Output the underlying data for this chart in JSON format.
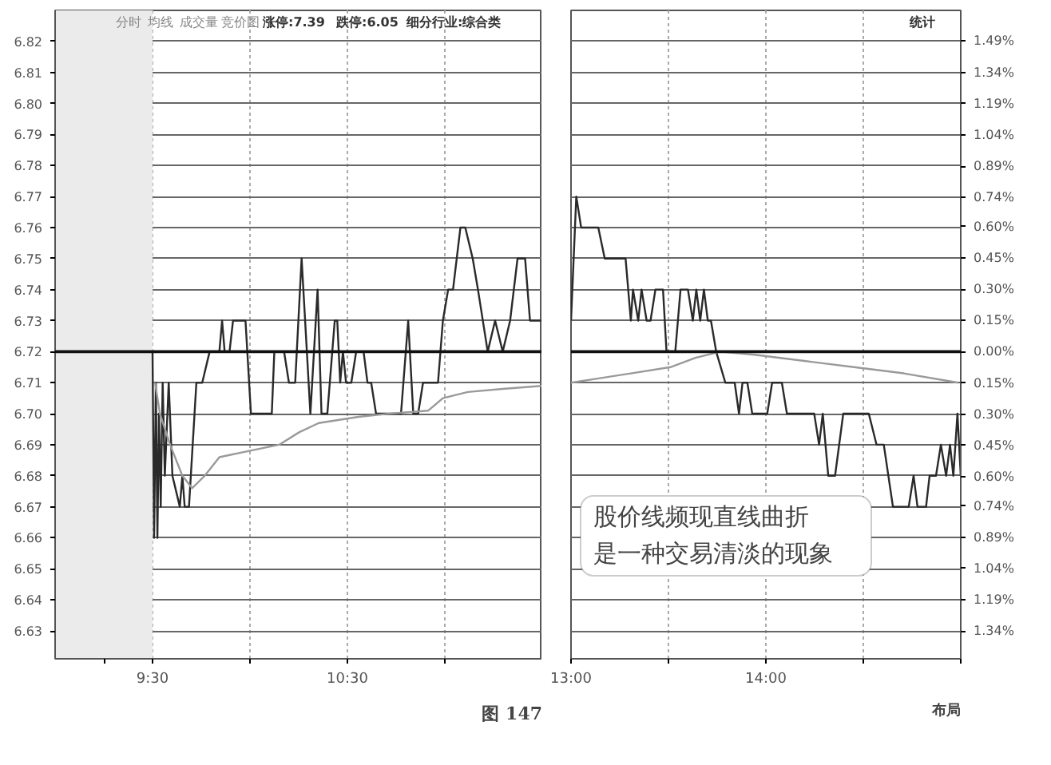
{
  "chart_data": [
    {
      "type": "line",
      "annotations": [
        "分时",
        "均线",
        "成交量",
        "竞价图",
        "涨停:7.39",
        "跌停:6.05",
        "细分行业:综合类",
        "图 147"
      ],
      "xlim": [
        9.0,
        11.5
      ],
      "xticks": [
        {
          "value": 9.25,
          "label": null
        },
        {
          "value": 9.5,
          "label": "9:30"
        },
        {
          "value": 10.0,
          "label": null
        },
        {
          "value": 10.5,
          "label": "10:30"
        },
        {
          "value": 11.0,
          "label": null
        }
      ],
      "ylim": [
        6.621,
        6.83
      ],
      "yticks": [
        6.63,
        6.64,
        6.65,
        6.66,
        6.67,
        6.68,
        6.69,
        {
          "value": 6.7,
          "label": "6.70"
        },
        6.71,
        6.72,
        6.73,
        6.74,
        6.75,
        6.76,
        6.77,
        6.78,
        6.79,
        {
          "value": 6.8,
          "label": "6.80"
        },
        6.81,
        6.82
      ],
      "grid": true,
      "line_style": "solid",
      "ref_lines": [
        {
          "axis": "y",
          "value": 6.72,
          "label": null,
          "color": "#111111"
        }
      ],
      "bands": [
        {
          "axis": "x",
          "from": 9.0,
          "to": 9.5,
          "label": null,
          "color": "#ebebeb"
        }
      ],
      "series": [
        {
          "color": "#2a2a2a",
          "x": [
            9.5,
            9.508,
            9.517,
            9.525,
            9.533,
            9.542,
            9.552,
            9.563,
            9.583,
            9.602,
            9.64,
            9.653,
            9.665,
            9.687,
            9.725,
            9.755,
            9.793,
            9.843,
            9.857,
            9.87,
            9.895,
            9.913,
            9.977,
            10.005,
            10.112,
            10.125,
            10.175,
            10.2,
            10.232,
            10.265,
            10.31,
            10.347,
            10.367,
            10.397,
            10.435,
            10.448,
            10.463,
            10.477,
            10.493,
            10.52,
            10.545,
            10.583,
            10.603,
            10.622,
            10.647,
            10.685,
            10.775,
            10.812,
            10.838,
            10.863,
            10.888,
            10.965,
            10.99,
            11.017,
            11.042,
            11.08,
            11.105,
            11.143,
            11.17,
            11.22,
            11.258,
            11.297,
            11.335,
            11.373,
            11.412,
            11.437,
            11.5
          ],
          "values": [
            6.72,
            6.66,
            6.71,
            6.66,
            6.7,
            6.67,
            6.71,
            6.68,
            6.71,
            6.68,
            6.67,
            6.68,
            6.67,
            6.67,
            6.71,
            6.71,
            6.72,
            6.72,
            6.73,
            6.72,
            6.72,
            6.73,
            6.73,
            6.7,
            6.7,
            6.72,
            6.72,
            6.71,
            6.71,
            6.75,
            6.7,
            6.74,
            6.7,
            6.7,
            6.73,
            6.73,
            6.71,
            6.72,
            6.71,
            6.71,
            6.72,
            6.72,
            6.71,
            6.71,
            6.7,
            6.7,
            6.7,
            6.73,
            6.7,
            6.7,
            6.71,
            6.71,
            6.73,
            6.74,
            6.74,
            6.76,
            6.76,
            6.75,
            6.74,
            6.72,
            6.73,
            6.72,
            6.73,
            6.75,
            6.75,
            6.73,
            6.73
          ]
        },
        {
          "color": "#9a9a9a",
          "x": [
            9.513,
            9.538,
            9.59,
            9.653,
            9.703,
            9.768,
            9.843,
            9.997,
            10.15,
            10.252,
            10.353,
            10.558,
            10.71,
            10.915,
            10.99,
            11.118,
            11.297,
            11.5
          ],
          "values": [
            6.71,
            6.7,
            6.69,
            6.68,
            6.676,
            6.68,
            6.686,
            6.688,
            6.69,
            6.694,
            6.697,
            6.699,
            6.7,
            6.701,
            6.705,
            6.707,
            6.708,
            6.709
          ]
        }
      ]
    },
    {
      "type": "line",
      "annotations": [
        "统计",
        "股价线频现直线曲折",
        "是一种交易清淡的现象",
        "布局"
      ],
      "xlim": [
        13.0,
        15.0
      ],
      "xticks": [
        {
          "value": 13.0,
          "label": "13:00"
        },
        {
          "value": 13.5,
          "label": null
        },
        {
          "value": 14.0,
          "label": "14:00"
        },
        {
          "value": 14.5,
          "label": null
        },
        {
          "value": 15.0,
          "label": null
        }
      ],
      "ylim": [
        6.621,
        6.83
      ],
      "yticks": [
        6.63,
        6.64,
        6.65,
        6.66,
        6.67,
        6.68,
        6.69,
        6.7,
        6.71,
        6.72,
        6.73,
        6.74,
        6.75,
        6.76,
        6.77,
        6.78,
        6.79,
        6.8,
        6.81,
        6.82
      ],
      "tick_labels": "x",
      "y2lim": [
        -1.473,
        1.637
      ],
      "y2ticks": [
        {
          "value": 1.49,
          "label": "1.49%"
        },
        {
          "value": 1.34,
          "label": "1.34%"
        },
        {
          "value": 1.19,
          "label": "1.19%"
        },
        {
          "value": 1.04,
          "label": "1.04%"
        },
        {
          "value": 0.89,
          "label": "0.89%"
        },
        {
          "value": 0.74,
          "label": "0.74%"
        },
        {
          "value": 0.6,
          "label": "0.60%"
        },
        {
          "value": 0.45,
          "label": "0.45%"
        },
        {
          "value": 0.3,
          "label": "0.30%"
        },
        {
          "value": 0.15,
          "label": "0.15%"
        },
        {
          "value": 0,
          "label": "0.00%"
        },
        {
          "value": -0.15,
          "label": "0.15%"
        },
        {
          "value": -0.3,
          "label": "0.30%"
        },
        {
          "value": -0.45,
          "label": "0.45%"
        },
        {
          "value": -0.6,
          "label": "0.60%"
        },
        {
          "value": -0.74,
          "label": "0.74%"
        },
        {
          "value": -0.89,
          "label": "0.89%"
        },
        {
          "value": -1.04,
          "label": "1.04%"
        },
        {
          "value": -1.19,
          "label": "1.19%"
        },
        {
          "value": -1.34,
          "label": "1.34%"
        }
      ],
      "grid": true,
      "line_style": "solid",
      "ref_lines": [
        {
          "axis": "y",
          "value": 6.72,
          "label": null,
          "color": "#111111"
        }
      ],
      "series": [
        {
          "color": "#2a2a2a",
          "x": [
            13.0,
            13.027,
            13.052,
            13.14,
            13.173,
            13.28,
            13.307,
            13.318,
            13.345,
            13.362,
            13.388,
            13.408,
            13.433,
            13.472,
            13.49,
            13.535,
            13.562,
            13.6,
            13.625,
            13.643,
            13.663,
            13.682,
            13.702,
            13.718,
            13.745,
            13.792,
            13.84,
            13.862,
            13.88,
            13.905,
            13.93,
            14.007,
            14.032,
            14.082,
            14.108,
            14.248,
            14.273,
            14.292,
            14.32,
            14.355,
            14.397,
            14.528,
            14.568,
            14.605,
            14.652,
            14.733,
            14.758,
            14.778,
            14.822,
            14.84,
            14.873,
            14.898,
            14.925,
            14.945,
            14.962,
            14.983,
            15.0
          ],
          "values": [
            6.73,
            6.77,
            6.76,
            6.76,
            6.75,
            6.75,
            6.73,
            6.74,
            6.73,
            6.74,
            6.73,
            6.73,
            6.74,
            6.74,
            6.72,
            6.72,
            6.74,
            6.74,
            6.73,
            6.74,
            6.73,
            6.74,
            6.73,
            6.73,
            6.72,
            6.71,
            6.71,
            6.7,
            6.71,
            6.71,
            6.7,
            6.7,
            6.71,
            6.71,
            6.7,
            6.7,
            6.69,
            6.7,
            6.68,
            6.68,
            6.7,
            6.7,
            6.69,
            6.69,
            6.67,
            6.67,
            6.68,
            6.67,
            6.67,
            6.68,
            6.68,
            6.69,
            6.68,
            6.69,
            6.68,
            6.7,
            6.68
          ]
        },
        {
          "color": "#9a9a9a",
          "x": [
            13.0,
            13.307,
            13.51,
            13.638,
            13.765,
            13.943,
            14.198,
            14.453,
            14.708,
            14.988
          ],
          "values": [
            6.71,
            6.713,
            6.715,
            6.718,
            6.72,
            6.719,
            6.717,
            6.715,
            6.713,
            6.71
          ]
        }
      ]
    }
  ]
}
